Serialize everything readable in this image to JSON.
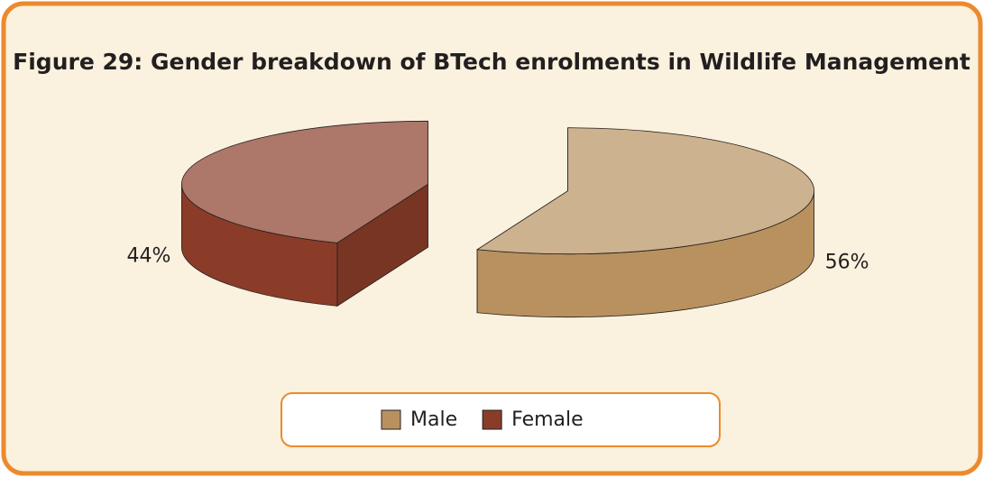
{
  "chart_data": {
    "type": "pie",
    "title": "Figure 29: Gender breakdown of BTech enrolments in Wildlife Management",
    "categories": [
      "Male",
      "Female"
    ],
    "values": [
      56,
      44
    ],
    "value_labels": [
      "56%",
      "44%"
    ],
    "colors": [
      "#b8915f",
      "#8a3c28"
    ],
    "legend": "bottom"
  }
}
